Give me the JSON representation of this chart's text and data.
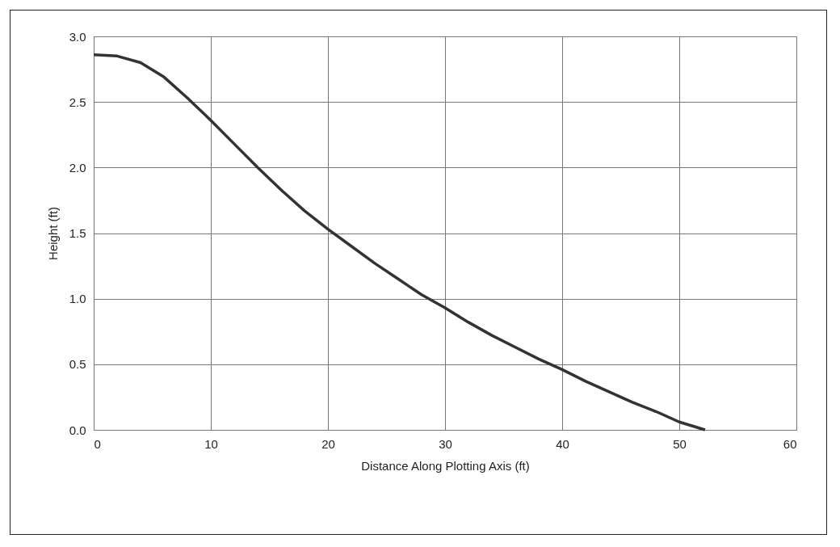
{
  "chart_data": {
    "type": "line",
    "xlabel": "Distance Along Plotting Axis (ft)",
    "ylabel": "Height (ft)",
    "xlim": [
      0,
      60
    ],
    "xticks": [
      0,
      10,
      20,
      30,
      40,
      50,
      60
    ],
    "ylim": [
      0,
      3
    ],
    "yticks": [
      {
        "value": 0,
        "label": "0.0"
      },
      {
        "value": 0.5,
        "label": "0.5"
      },
      {
        "value": 1,
        "label": "1.0"
      },
      {
        "value": 1.5,
        "label": "1.5"
      },
      {
        "value": 2,
        "label": "2.0"
      },
      {
        "value": 2.5,
        "label": "2.5"
      },
      {
        "value": 3,
        "label": "3.0"
      }
    ],
    "grid": true,
    "marker": "none",
    "line_style": "solid",
    "series": [
      {
        "color": "#333333",
        "x": [
          0,
          2,
          4,
          6,
          8,
          10,
          12,
          14,
          16,
          18,
          20,
          22,
          24,
          26,
          28,
          30,
          32,
          34,
          36,
          38,
          40,
          42,
          44,
          46,
          48,
          50,
          52.2
        ],
        "values": [
          2.86,
          2.85,
          2.8,
          2.69,
          2.53,
          2.36,
          2.18,
          2.0,
          1.83,
          1.67,
          1.53,
          1.4,
          1.27,
          1.15,
          1.03,
          0.93,
          0.82,
          0.72,
          0.63,
          0.54,
          0.46,
          0.37,
          0.29,
          0.21,
          0.14,
          0.06,
          0
        ]
      }
    ]
  }
}
